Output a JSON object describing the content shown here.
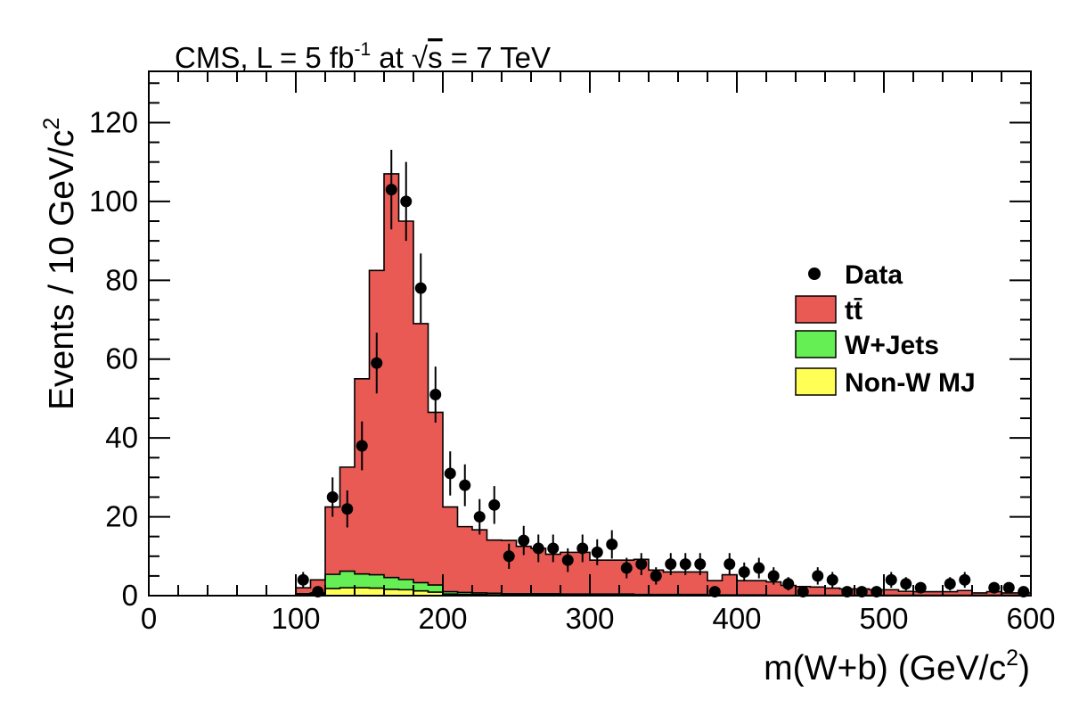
{
  "chart_data": {
    "type": "histogram",
    "title": {
      "prefix": "CMS, L = 5 fb",
      "lumi_exponent": "-1",
      "at": " at ",
      "sqrt_symbol": "√",
      "sqrt_arg": "s",
      "suffix": " = 7 TeV"
    },
    "xlabel": {
      "main": "m(W+b) (GeV/c",
      "exponent": "2",
      "close": ")"
    },
    "ylabel": {
      "main": "Events / 10 GeV/c",
      "exponent": "2"
    },
    "xlim": [
      0,
      600
    ],
    "ylim": [
      0,
      133
    ],
    "x_ticks": [
      "0",
      "100",
      "200",
      "300",
      "400",
      "500",
      "600"
    ],
    "y_ticks": [
      "0",
      "20",
      "40",
      "60",
      "80",
      "100",
      "120"
    ],
    "grid": false,
    "legend_position": "right",
    "bin_edges": [
      0,
      10,
      20,
      30,
      40,
      50,
      60,
      70,
      80,
      90,
      100,
      110,
      120,
      130,
      140,
      150,
      160,
      170,
      180,
      190,
      200,
      210,
      220,
      230,
      240,
      250,
      260,
      270,
      280,
      290,
      300,
      310,
      320,
      330,
      340,
      350,
      360,
      370,
      380,
      390,
      400,
      410,
      420,
      430,
      440,
      450,
      460,
      470,
      480,
      490,
      500,
      510,
      520,
      530,
      540,
      550,
      560,
      570,
      580,
      590,
      600
    ],
    "stack": [
      {
        "name": "Non-W MJ",
        "color": "#ffff55",
        "values": [
          0,
          0,
          0,
          0,
          0,
          0,
          0,
          0,
          0,
          0,
          0.3,
          0.4,
          1.8,
          2.0,
          2.0,
          1.9,
          1.6,
          1.5,
          1.2,
          0.9,
          0.4,
          0.3,
          0.3,
          0.2,
          0.2,
          0.2,
          0.2,
          0.2,
          0.1,
          0.1,
          0.1,
          0.1,
          0.1,
          0.1,
          0.1,
          0.1,
          0.1,
          0.1,
          0,
          0,
          0,
          0,
          0,
          0,
          0,
          0,
          0,
          0,
          0,
          0,
          0,
          0,
          0,
          0,
          0,
          0,
          0,
          0,
          0,
          0
        ]
      },
      {
        "name": "W+Jets",
        "color": "#66ee55",
        "values": [
          0,
          0,
          0,
          0,
          0,
          0,
          0,
          0,
          0,
          0,
          0.2,
          0.3,
          3.6,
          4.2,
          3.5,
          3.4,
          3.0,
          2.6,
          2.1,
          1.8,
          0.6,
          0.5,
          0.4,
          0.4,
          0.3,
          0.3,
          0.3,
          0.3,
          0.3,
          0.3,
          0.3,
          0.3,
          0.3,
          0.2,
          0.2,
          0.2,
          0.2,
          0.2,
          0.2,
          0.2,
          0.2,
          0.2,
          0.1,
          0.1,
          0.1,
          0.1,
          0.1,
          0.1,
          0.1,
          0.1,
          0.1,
          0.1,
          0.1,
          0.1,
          0.1,
          0.1,
          0.1,
          0.1,
          0.1,
          0.1
        ]
      },
      {
        "name": "tt̄",
        "color": "#ea5a55",
        "values": [
          0,
          0,
          0,
          0,
          0,
          0,
          0,
          0,
          0,
          0,
          1.5,
          3.3,
          17.1,
          26.4,
          49.5,
          77.2,
          102.4,
          90.9,
          65.7,
          43.8,
          21.5,
          16.7,
          16.0,
          13.5,
          13.5,
          12.0,
          11.5,
          10.0,
          10.6,
          10.6,
          8.6,
          8.6,
          8.6,
          8.9,
          6.2,
          5.7,
          5.7,
          5.7,
          3.6,
          5.1,
          3.6,
          3.6,
          3.4,
          2.5,
          2.2,
          2.1,
          1.8,
          1.6,
          1.6,
          1.4,
          1.4,
          1.0,
          0.9,
          0.9,
          0.9,
          1.2,
          0.6,
          0.9,
          0.6,
          0.6
        ]
      }
    ],
    "data": {
      "name": "Data",
      "x": [
        105,
        115,
        125,
        135,
        145,
        155,
        165,
        175,
        185,
        195,
        205,
        215,
        225,
        235,
        245,
        255,
        265,
        275,
        285,
        295,
        305,
        315,
        325,
        335,
        345,
        355,
        365,
        375,
        385,
        395,
        405,
        415,
        425,
        435,
        445,
        455,
        465,
        475,
        485,
        495,
        505,
        515,
        525,
        545,
        555,
        575,
        585,
        595
      ],
      "y": [
        4,
        1,
        25,
        22,
        38,
        59,
        103,
        100,
        78,
        51,
        31,
        28,
        20,
        23,
        10,
        14,
        12,
        12,
        9,
        12,
        11,
        13,
        7,
        8,
        5,
        8,
        8,
        8,
        1,
        8,
        6,
        7,
        5,
        3,
        1,
        5,
        4,
        1,
        1,
        1,
        4,
        3,
        2,
        3,
        4,
        2,
        2,
        1
      ],
      "err": [
        2.0,
        1.0,
        5.0,
        4.7,
        6.2,
        7.7,
        10.1,
        10.0,
        8.8,
        7.1,
        5.6,
        5.3,
        4.5,
        4.8,
        3.2,
        3.7,
        3.5,
        3.5,
        3.0,
        3.5,
        3.3,
        3.6,
        2.6,
        2.8,
        2.2,
        2.8,
        2.8,
        2.8,
        1.0,
        2.8,
        2.4,
        2.6,
        2.2,
        1.7,
        1.0,
        2.2,
        2.0,
        1.0,
        1.0,
        1.0,
        2.0,
        1.7,
        1.4,
        1.7,
        2.0,
        1.4,
        1.4,
        1.0
      ]
    },
    "legend": [
      "Data",
      "tt̄",
      "W+Jets",
      "Non-W MJ"
    ]
  }
}
